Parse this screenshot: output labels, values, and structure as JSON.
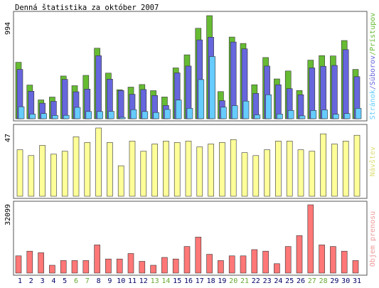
{
  "title": "Denná štatistika za október 2007",
  "days": [
    "1",
    "2",
    "3",
    "4",
    "5",
    "6",
    "7",
    "8",
    "9",
    "10",
    "11",
    "12",
    "13",
    "14",
    "15",
    "16",
    "17",
    "18",
    "19",
    "20",
    "21",
    "22",
    "23",
    "24",
    "25",
    "26",
    "27",
    "28",
    "29",
    "30",
    "31"
  ],
  "weekend_days": [
    "6",
    "7",
    "13",
    "14",
    "20",
    "21",
    "27",
    "28"
  ],
  "colors": {
    "pristupov": "#66bb33",
    "suborov": "#6666dd",
    "stranok": "#66ccff",
    "navstev": "#ffff99",
    "objem": "#ff7777",
    "weekday_label": "#000066",
    "weekend_label": "#66aa33",
    "legend_navstev": "#dddd77",
    "legend_objem": "#ee9999"
  },
  "top_panel": {
    "max_label": "994",
    "legend": {
      "stranok": "Stránok",
      "sep1": "/",
      "suborov": "Súborov",
      "sep2": "/",
      "pristupov": "Prístupov"
    }
  },
  "mid_panel": {
    "max_label": "47",
    "legend": "Návštev"
  },
  "bot_panel": {
    "max_label": "32099",
    "legend": "Objem prenosu"
  },
  "chart_data": [
    {
      "type": "bar",
      "categories": [
        "1",
        "2",
        "3",
        "4",
        "5",
        "6",
        "7",
        "8",
        "9",
        "10",
        "11",
        "12",
        "13",
        "14",
        "15",
        "16",
        "17",
        "18",
        "19",
        "20",
        "21",
        "22",
        "23",
        "24",
        "25",
        "26",
        "27",
        "28",
        "29",
        "30",
        "31"
      ],
      "ymax_label": 994,
      "series": [
        {
          "name": "Prístupov",
          "values": [
            544,
            325,
            182,
            209,
            412,
            319,
            418,
            680,
            440,
            280,
            305,
            330,
            271,
            210,
            490,
            616,
            872,
            994,
            262,
            788,
            726,
            328,
            590,
            384,
            461,
            272,
            565,
            609,
            605,
            754,
            476
          ]
        },
        {
          "name": "Súborov",
          "values": [
            476,
            265,
            150,
            168,
            380,
            260,
            286,
            608,
            382,
            272,
            236,
            282,
            224,
            128,
            442,
            508,
            760,
            786,
            174,
            740,
            674,
            244,
            508,
            328,
            290,
            232,
            490,
            506,
            514,
            666,
            406
          ]
        },
        {
          "name": "Stránok",
          "values": [
            116,
            45,
            50,
            32,
            33,
            110,
            70,
            70,
            71,
            14,
            88,
            70,
            60,
            90,
            180,
            100,
            378,
            600,
            112,
            127,
            170,
            38,
            232,
            46,
            80,
            28,
            80,
            86,
            44,
            50,
            100
          ]
        }
      ]
    },
    {
      "type": "bar",
      "categories": [
        "1",
        "2",
        "3",
        "4",
        "5",
        "6",
        "7",
        "8",
        "9",
        "10",
        "11",
        "12",
        "13",
        "14",
        "15",
        "16",
        "17",
        "18",
        "19",
        "20",
        "21",
        "22",
        "23",
        "24",
        "25",
        "26",
        "27",
        "28",
        "29",
        "30",
        "31"
      ],
      "ymax_label": 47,
      "series": [
        {
          "name": "Návštev",
          "values": [
            32,
            28,
            35,
            29,
            31,
            41,
            37,
            47,
            37,
            21,
            38,
            31,
            36,
            38,
            37,
            38,
            34,
            36,
            37,
            39,
            30,
            28,
            32,
            38,
            38,
            32,
            31,
            43,
            36,
            38,
            42
          ]
        }
      ]
    },
    {
      "type": "bar",
      "categories": [
        "1",
        "2",
        "3",
        "4",
        "5",
        "6",
        "7",
        "8",
        "9",
        "10",
        "11",
        "12",
        "13",
        "14",
        "15",
        "16",
        "17",
        "18",
        "19",
        "20",
        "21",
        "22",
        "23",
        "24",
        "25",
        "26",
        "27",
        "28",
        "29",
        "30",
        "31"
      ],
      "ymax_label": 32099,
      "series": [
        {
          "name": "Objem prenosu",
          "values": [
            8083,
            10294,
            9559,
            3674,
            5880,
            5880,
            5880,
            13229,
            6615,
            6615,
            9186,
            5512,
            3674,
            7349,
            6615,
            12494,
            16904,
            8818,
            5880,
            8083,
            8083,
            11023,
            10294,
            4409,
            12494,
            17633,
            32099,
            13229,
            12494,
            10294,
            5880
          ]
        }
      ]
    }
  ]
}
